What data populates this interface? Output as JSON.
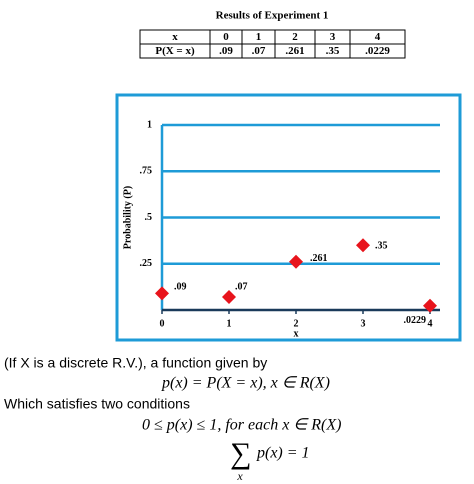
{
  "table": {
    "title": "Results of Experiment 1",
    "header": [
      "x",
      "0",
      "1",
      "2",
      "3",
      "4"
    ],
    "rows": [
      [
        "P(X = x)",
        ".09",
        ".07",
        ".261",
        ".35",
        ".0229"
      ]
    ]
  },
  "chart_data": {
    "type": "scatter",
    "x_label": "x",
    "y_label": "Probability (P)",
    "x": [
      0,
      1,
      2,
      3,
      4
    ],
    "values": [
      0.09,
      0.07,
      0.261,
      0.35,
      0.0229
    ],
    "value_labels": [
      ".09",
      ".07",
      ".261",
      ".35",
      ".0229"
    ],
    "color": "#e8141c",
    "xlim": [
      0,
      4
    ],
    "xticks": [
      0,
      1,
      2,
      3,
      4
    ],
    "ylim": [
      0,
      1
    ],
    "yticks": [
      {
        "value": 0.25,
        "label": ".25"
      },
      {
        "value": 0.5,
        "label": ".5"
      },
      {
        "value": 0.75,
        "label": ".75"
      },
      1
    ],
    "grid": true,
    "grid_color": "#1e9bd7"
  },
  "text": {
    "line1": "(If X is a discrete R.V.), a function given by",
    "formula1": "p(x) = P(X = x), x ∈ R(X)",
    "line2": "Which satisfies two conditions",
    "formula2": "0 ≤ p(x) ≤ 1, for each x ∈ R(X)",
    "sum_symbol": "∑",
    "sum_index": "x",
    "formula3": "p(x) = 1"
  }
}
